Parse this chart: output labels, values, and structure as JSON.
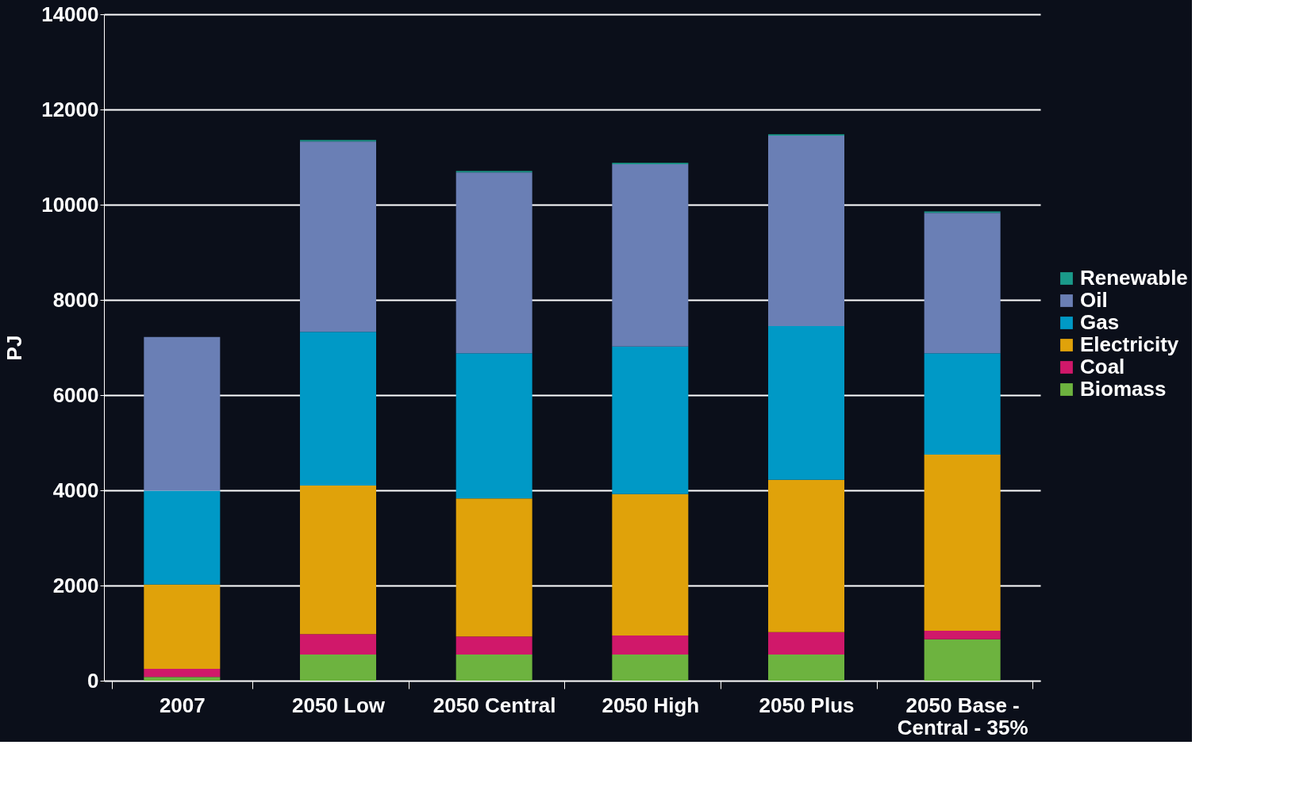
{
  "chart_data": {
    "type": "bar",
    "stacked": true,
    "ylabel": "PJ",
    "categories": [
      "2007",
      "2050 Low",
      "2050 Central",
      "2050 High",
      "2050 Plus",
      "2050 Base - Central - 35%"
    ],
    "series": [
      {
        "name": "Biomass",
        "color": "#6db33f",
        "values": [
          80,
          550,
          550,
          550,
          550,
          870
        ]
      },
      {
        "name": "Coal",
        "color": "#d0186a",
        "values": [
          170,
          430,
          380,
          400,
          470,
          180
        ]
      },
      {
        "name": "Electricity",
        "color": "#e0a20a",
        "values": [
          1770,
          3120,
          2900,
          2970,
          3200,
          3700
        ]
      },
      {
        "name": "Gas",
        "color": "#0099c6",
        "values": [
          1970,
          3230,
          3050,
          3100,
          3230,
          2130
        ]
      },
      {
        "name": "Oil",
        "color": "#6a7fb5",
        "values": [
          3230,
          4000,
          3800,
          3830,
          4000,
          2950
        ]
      },
      {
        "name": "Renewable",
        "color": "#1a9a8a",
        "values": [
          0,
          30,
          30,
          30,
          30,
          30
        ]
      }
    ],
    "ylim": [
      0,
      14000
    ],
    "yticks": [
      0,
      2000,
      4000,
      6000,
      8000,
      10000,
      12000,
      14000
    ],
    "grid": "y",
    "legend": "right"
  }
}
